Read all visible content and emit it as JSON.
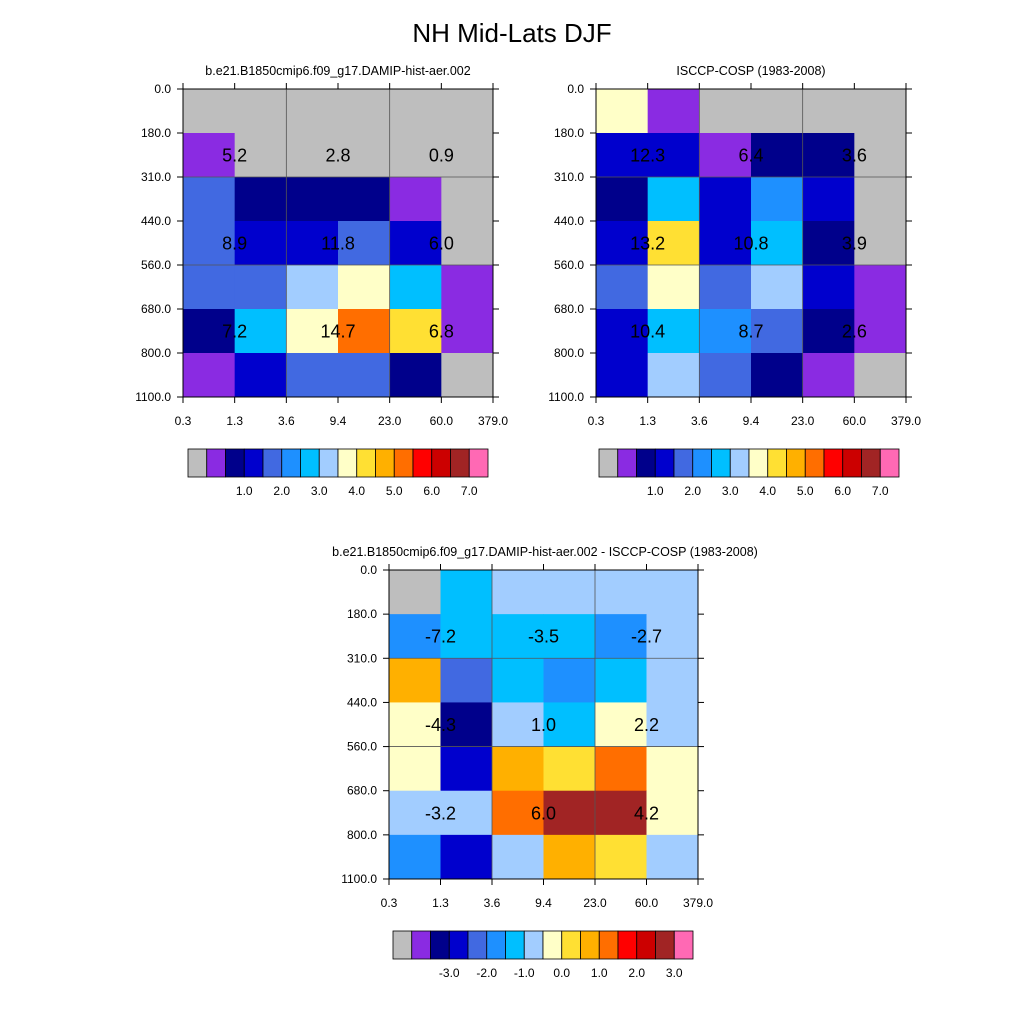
{
  "main_title": "NH Mid-Lats DJF",
  "palette": {
    "missing": "#bebebe",
    "c01": "#8a2be2",
    "c02": "#00008b",
    "c03": "#0000cd",
    "c04": "#4169e1",
    "c05": "#1e90ff",
    "c06": "#00bfff",
    "c07": "#a2cdff",
    "c08": "#ffffc8",
    "c09": "#ffe033",
    "c10": "#ffb000",
    "c11": "#ff6e00",
    "c12": "#ff0000",
    "c13": "#cc0000",
    "c14": "#a12424",
    "c15": "#ff69b4"
  },
  "chart_data": [
    {
      "type": "heatmap",
      "id": "model",
      "title": "b.e21.B1850cmip6.f09_g17.DAMIP-hist-aer.002",
      "x_tick_labels": [
        "0.3",
        "1.3",
        "3.6",
        "9.4",
        "23.0",
        "60.0",
        "379.0"
      ],
      "y_tick_labels": [
        "0.0",
        "180.0",
        "310.0",
        "440.0",
        "560.0",
        "680.0",
        "800.0",
        "1100.0"
      ],
      "grid_colors": [
        [
          "missing",
          "missing",
          "missing",
          "missing",
          "missing",
          "missing"
        ],
        [
          "c01",
          "missing",
          "missing",
          "missing",
          "missing",
          "missing"
        ],
        [
          "c04",
          "c02",
          "c02",
          "c02",
          "c01",
          "missing"
        ],
        [
          "c04",
          "c03",
          "c03",
          "c04",
          "c03",
          "missing"
        ],
        [
          "c04",
          "c04",
          "c07",
          "c08",
          "c06",
          "c01"
        ],
        [
          "c02",
          "c06",
          "c08",
          "c11",
          "c09",
          "c01"
        ],
        [
          "c01",
          "c03",
          "c04",
          "c04",
          "c02",
          "missing"
        ]
      ],
      "block_values": [
        [
          "5.2",
          "2.8",
          "0.9"
        ],
        [
          "8.9",
          "11.8",
          "6.0"
        ],
        [
          "7.2",
          "14.7",
          "6.8"
        ]
      ],
      "colorbar": {
        "colors": [
          "missing",
          "c01",
          "c02",
          "c03",
          "c04",
          "c05",
          "c06",
          "c07",
          "c08",
          "c09",
          "c10",
          "c11",
          "c12",
          "c13",
          "c14",
          "c15"
        ],
        "tick_labels": [
          "1.0",
          "2.0",
          "3.0",
          "4.0",
          "5.0",
          "6.0",
          "7.0"
        ],
        "tick_positions": [
          3,
          5,
          7,
          9,
          11,
          13,
          15
        ]
      }
    },
    {
      "type": "heatmap",
      "id": "obs",
      "title": "ISCCP-COSP (1983-2008)",
      "x_tick_labels": [
        "0.3",
        "1.3",
        "3.6",
        "9.4",
        "23.0",
        "60.0",
        "379.0"
      ],
      "y_tick_labels": [
        "0.0",
        "180.0",
        "310.0",
        "440.0",
        "560.0",
        "680.0",
        "800.0",
        "1100.0"
      ],
      "grid_colors": [
        [
          "c08",
          "c01",
          "missing",
          "missing",
          "missing",
          "missing"
        ],
        [
          "c03",
          "c03",
          "c01",
          "c02",
          "c02",
          "missing"
        ],
        [
          "c02",
          "c06",
          "c03",
          "c05",
          "c03",
          "missing"
        ],
        [
          "c03",
          "c09",
          "c03",
          "c06",
          "c02",
          "missing"
        ],
        [
          "c04",
          "c08",
          "c04",
          "c07",
          "c03",
          "c01"
        ],
        [
          "c03",
          "c06",
          "c05",
          "c04",
          "c02",
          "c01"
        ],
        [
          "c03",
          "c07",
          "c04",
          "c02",
          "c01",
          "missing"
        ]
      ],
      "block_values": [
        [
          "12.3",
          "6.4",
          "3.6"
        ],
        [
          "13.2",
          "10.8",
          "3.9"
        ],
        [
          "10.4",
          "8.7",
          "2.6"
        ]
      ],
      "colorbar": {
        "colors": [
          "missing",
          "c01",
          "c02",
          "c03",
          "c04",
          "c05",
          "c06",
          "c07",
          "c08",
          "c09",
          "c10",
          "c11",
          "c12",
          "c13",
          "c14",
          "c15"
        ],
        "tick_labels": [
          "1.0",
          "2.0",
          "3.0",
          "4.0",
          "5.0",
          "6.0",
          "7.0"
        ],
        "tick_positions": [
          3,
          5,
          7,
          9,
          11,
          13,
          15
        ]
      }
    },
    {
      "type": "heatmap",
      "id": "diff",
      "title": "b.e21.B1850cmip6.f09_g17.DAMIP-hist-aer.002 - ISCCP-COSP (1983-2008)",
      "x_tick_labels": [
        "0.3",
        "1.3",
        "3.6",
        "9.4",
        "23.0",
        "60.0",
        "379.0"
      ],
      "y_tick_labels": [
        "0.0",
        "180.0",
        "310.0",
        "440.0",
        "560.0",
        "680.0",
        "800.0",
        "1100.0"
      ],
      "grid_colors": [
        [
          "missing",
          "c06",
          "c07",
          "c07",
          "c07",
          "c07"
        ],
        [
          "c05",
          "c06",
          "c06",
          "c06",
          "c05",
          "c07"
        ],
        [
          "c10",
          "c04",
          "c06",
          "c05",
          "c06",
          "c07"
        ],
        [
          "c08",
          "c02",
          "c07",
          "c06",
          "c08",
          "c07"
        ],
        [
          "c08",
          "c03",
          "c10",
          "c09",
          "c11",
          "c08"
        ],
        [
          "c07",
          "c07",
          "c11",
          "c14",
          "c14",
          "c08"
        ],
        [
          "c05",
          "c03",
          "c07",
          "c10",
          "c09",
          "c07"
        ]
      ],
      "block_values": [
        [
          "-7.2",
          "-3.5",
          "-2.7"
        ],
        [
          "-4.3",
          "1.0",
          "2.2"
        ],
        [
          "-3.2",
          "6.0",
          "4.2"
        ]
      ],
      "colorbar": {
        "colors": [
          "missing",
          "c01",
          "c02",
          "c03",
          "c04",
          "c05",
          "c06",
          "c07",
          "c08",
          "c09",
          "c10",
          "c11",
          "c12",
          "c13",
          "c14",
          "c15"
        ],
        "tick_labels": [
          "-3.0",
          "-2.0",
          "-1.0",
          "0.0",
          "1.0",
          "2.0",
          "3.0"
        ],
        "tick_positions": [
          3,
          5,
          7,
          9,
          11,
          13,
          15
        ]
      }
    }
  ]
}
